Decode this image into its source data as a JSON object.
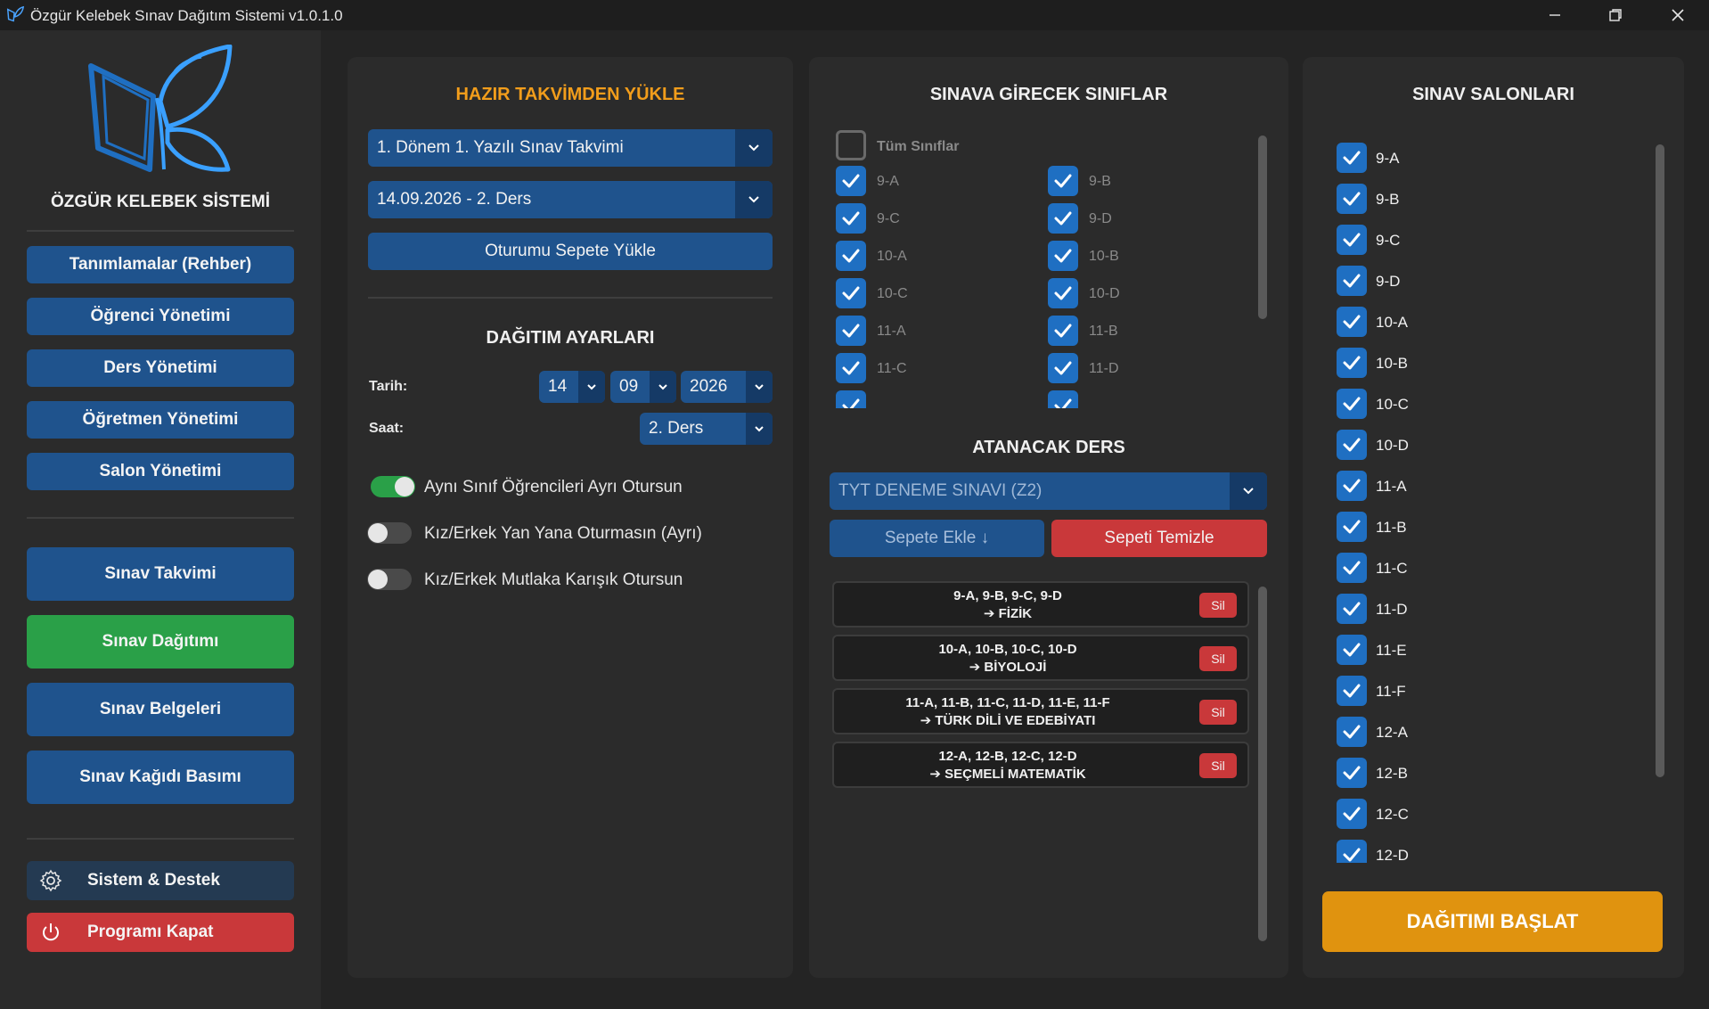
{
  "window": {
    "title": "Özgür Kelebek Sınav Dağıtım Sistemi v1.0.1.0"
  },
  "sidebar": {
    "brand": "ÖZGÜR KELEBEK SİSTEMİ",
    "items": [
      {
        "label": "Tanımlamalar (Rehber)"
      },
      {
        "label": "Öğrenci Yönetimi"
      },
      {
        "label": "Ders Yönetimi"
      },
      {
        "label": "Öğretmen Yönetimi"
      },
      {
        "label": "Salon Yönetimi"
      }
    ],
    "exam_items": [
      {
        "label": "Sınav Takvimi"
      },
      {
        "label": "Sınav Dağıtımı"
      },
      {
        "label": "Sınav Belgeleri"
      },
      {
        "label": "Sınav Kağıdı Basımı"
      }
    ],
    "system_label": "Sistem & Destek",
    "exit_label": "Programı Kapat"
  },
  "calendar": {
    "title": "HAZIR TAKVİMDEN YÜKLE",
    "schedule_value": "1. Dönem 1. Yazılı Sınav Takvimi",
    "session_value": "14.09.2026 - 2. Ders",
    "load_button": "Oturumu Sepete Yükle"
  },
  "settings": {
    "title": "DAĞITIM AYARLARI",
    "date_label": "Tarih:",
    "day": "14",
    "month": "09",
    "year": "2026",
    "time_label": "Saat:",
    "period": "2. Ders",
    "toggles": [
      {
        "label": "Aynı Sınıf Öğrencileri Ayrı Otursun",
        "on": true
      },
      {
        "label": "Kız/Erkek Yan Yana Oturmasın (Ayrı)",
        "on": false
      },
      {
        "label": "Kız/Erkek Mutlaka Karışık Otursun",
        "on": false
      }
    ]
  },
  "classes": {
    "title": "SINAVA GİRECEK SINIFLAR",
    "all_label": "Tüm Sınıflar",
    "items": [
      "9-A",
      "9-B",
      "9-C",
      "9-D",
      "10-A",
      "10-B",
      "10-C",
      "10-D",
      "11-A",
      "11-B",
      "11-C",
      "11-D"
    ]
  },
  "course": {
    "title": "ATANACAK DERS",
    "selected": "TYT DENEME SINAVI (Z2)",
    "add_button": "Sepete Ekle ↓",
    "clear_button": "Sepeti Temizle",
    "remove_label": "Sil",
    "basket": [
      {
        "classes": "9-A, 9-B, 9-C, 9-D",
        "course": "➔ FİZİK"
      },
      {
        "classes": "10-A, 10-B, 10-C, 10-D",
        "course": "➔ BİYOLOJİ"
      },
      {
        "classes": "11-A, 11-B, 11-C, 11-D, 11-E, 11-F",
        "course": "➔ TÜRK DİLİ VE EDEBİYATI"
      },
      {
        "classes": "12-A, 12-B, 12-C, 12-D",
        "course": "➔ SEÇMELİ MATEMATİK"
      }
    ]
  },
  "halls": {
    "title": "SINAV SALONLARI",
    "items": [
      "9-A",
      "9-B",
      "9-C",
      "9-D",
      "10-A",
      "10-B",
      "10-C",
      "10-D",
      "11-A",
      "11-B",
      "11-C",
      "11-D",
      "11-E",
      "11-F",
      "12-A",
      "12-B",
      "12-C",
      "12-D"
    ],
    "start_button": "DAĞITIMI BAŞLAT"
  },
  "colors": {
    "accent": "#1f538d",
    "green": "#2aa048",
    "red": "#c9383a",
    "orange": "#e0930f",
    "title_orange": "#f29d1b"
  }
}
